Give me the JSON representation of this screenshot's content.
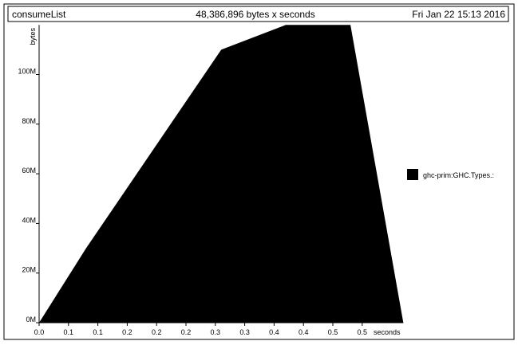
{
  "header": {
    "program": "consumeList",
    "total": "48,386,896 bytes x seconds",
    "date": "Fri Jan 22 15:13 2016"
  },
  "chart_data": {
    "type": "area",
    "xlabel": "seconds",
    "ylabel": "bytes",
    "xlim": [
      0,
      0.62
    ],
    "ylim": [
      0,
      120000000
    ],
    "x_ticks": [
      0.0,
      0.05,
      0.1,
      0.15,
      0.2,
      0.25,
      0.3,
      0.35,
      0.4,
      0.45,
      0.5,
      0.55
    ],
    "x_tick_labels": [
      "0.0",
      "0.1",
      "0.1",
      "0.2",
      "0.2",
      "0.2",
      "0.3",
      "0.3",
      "0.4",
      "0.4",
      "0.5",
      "0.5"
    ],
    "y_ticks": [
      0,
      20000000,
      40000000,
      60000000,
      80000000,
      100000000
    ],
    "y_tick_labels": [
      "0M",
      "20M",
      "40M",
      "60M",
      "80M",
      "100M"
    ],
    "series": [
      {
        "name": "ghc-prim:GHC.Types.:",
        "color": "#000000",
        "x": [
          0.0,
          0.08,
          0.31,
          0.42,
          0.53,
          0.62
        ],
        "y": [
          0,
          30000000,
          110000000,
          120000000,
          120000000,
          0
        ]
      }
    ],
    "legend": "right",
    "grid": false
  }
}
